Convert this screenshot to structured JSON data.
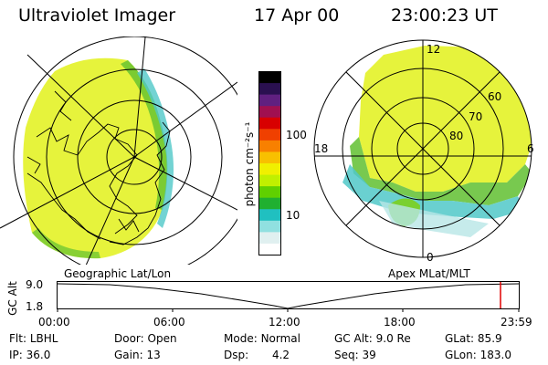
{
  "header": {
    "title": "Ultraviolet Imager",
    "date": "17 Apr 00",
    "time": "23:00:23 UT"
  },
  "left_panel": {
    "caption": "Geographic Lat/Lon"
  },
  "right_panel": {
    "caption": "Apex MLat/MLT",
    "lat_labels": [
      "60",
      "70",
      "80"
    ],
    "mlt_labels": {
      "top": "12",
      "left": "18",
      "right": "6",
      "bottom": "0"
    }
  },
  "colorbar": {
    "unit_label": "photon cm⁻²s⁻¹",
    "ticks": [
      "100",
      "10"
    ],
    "colors": [
      "#000000",
      "#2a1050",
      "#602080",
      "#a01050",
      "#d80000",
      "#f04000",
      "#f88000",
      "#f8c000",
      "#f0f000",
      "#c0f000",
      "#60d000",
      "#20b030",
      "#20c0c0",
      "#90e0e0",
      "#e0f0f0",
      "#ffffff"
    ]
  },
  "altitude_plot": {
    "axis_label": "GC Alt",
    "y_ticks": [
      "9.0",
      "1.8"
    ],
    "x_ticks": [
      "00:00",
      "06:00",
      "12:00",
      "18:00",
      "23:59"
    ]
  },
  "info": {
    "row1": [
      {
        "label": "Flt:",
        "value": "LBHL"
      },
      {
        "label": "Door:",
        "value": "Open"
      },
      {
        "label": "Mode:",
        "value": "Normal"
      },
      {
        "label": "GC Alt:",
        "value": "9.0 Re"
      },
      {
        "label": "GLat:",
        "value": "85.9"
      }
    ],
    "row2": [
      {
        "label": "IP:",
        "value": "36.0"
      },
      {
        "label": "Gain:",
        "value": "13"
      },
      {
        "label": "Dsp:",
        "value": "4.2"
      },
      {
        "label": "Seq:",
        "value": "39"
      },
      {
        "label": "GLon:",
        "value": "183.0"
      }
    ]
  }
}
